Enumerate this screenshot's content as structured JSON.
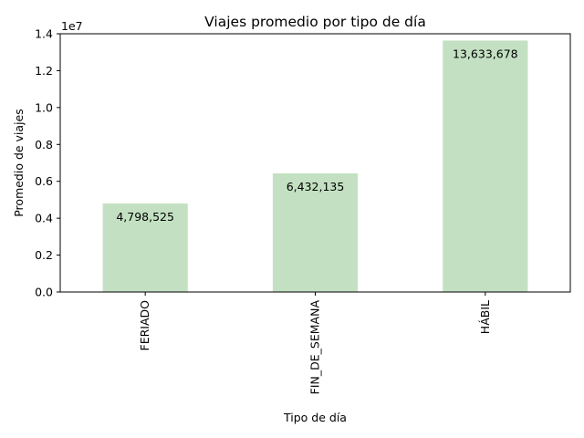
{
  "chart_data": {
    "type": "bar",
    "title": "Viajes promedio por tipo de día",
    "xlabel": "Tipo de día",
    "ylabel": "Promedio de viajes",
    "y_offset_label": "1e7",
    "y_scale": 10000000,
    "categories": [
      "FERIADO",
      "FIN_DE_SEMANA",
      "HÁBIL"
    ],
    "values": [
      4798525,
      6432135,
      13633678
    ],
    "data_labels": [
      "4,798,525",
      "6,432,135",
      "13,633,678"
    ],
    "ylim": [
      0,
      14000000
    ],
    "yticks": [
      0,
      2000000,
      4000000,
      6000000,
      8000000,
      10000000,
      12000000,
      14000000
    ],
    "ytick_labels": [
      "0.0",
      "0.2",
      "0.4",
      "0.6",
      "0.8",
      "1.0",
      "1.2",
      "1.4"
    ],
    "bar_color": "#c3e1c2",
    "grid": false,
    "legend": "none"
  }
}
